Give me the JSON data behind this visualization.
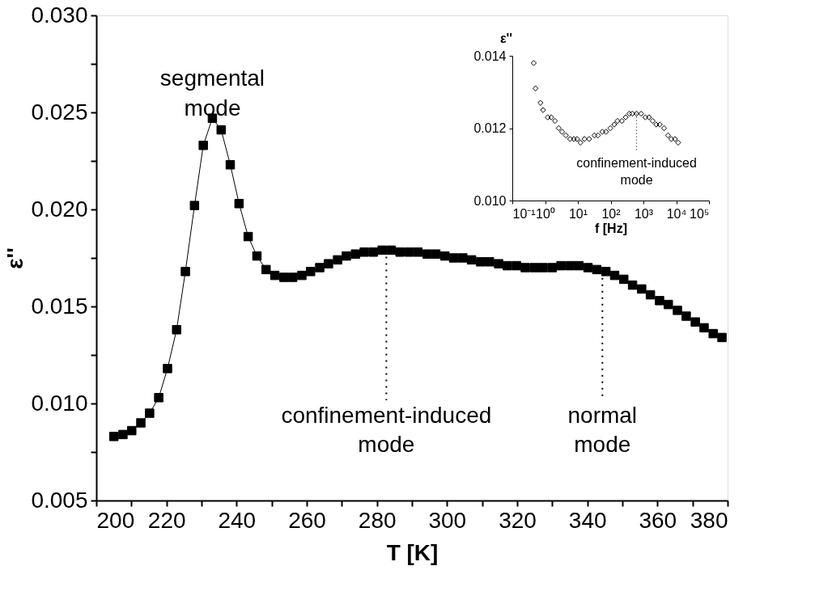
{
  "chart_data": [
    {
      "type": "line",
      "xlabel": "T [K]",
      "ylabel": "ε''",
      "marker": "square",
      "line_style": "solid",
      "x": [
        205.0,
        207.6,
        210.1,
        212.7,
        215.2,
        217.8,
        220.3,
        222.9,
        225.4,
        228.0,
        230.5,
        233.1,
        235.6,
        238.2,
        240.7,
        243.3,
        245.8,
        248.4,
        250.9,
        253.5,
        256.0,
        258.6,
        261.1,
        263.7,
        266.2,
        268.8,
        271.3,
        273.9,
        276.4,
        279.0,
        281.5,
        284.1,
        286.6,
        289.2,
        291.7,
        294.3,
        296.8,
        299.4,
        301.9,
        304.5,
        307.0,
        309.6,
        312.1,
        314.7,
        317.2,
        319.8,
        322.3,
        324.9,
        327.4,
        330.0,
        332.5,
        335.1,
        337.6,
        340.2,
        342.7,
        345.3,
        347.8,
        350.4,
        352.9,
        355.5,
        358.0,
        360.6,
        363.1,
        365.7,
        368.2,
        370.8,
        373.3,
        375.9,
        378.4
      ],
      "series": [
        {
          "color": "#000000",
          "values": [
            0.0083,
            0.0084,
            0.0086,
            0.009,
            0.0095,
            0.0103,
            0.0118,
            0.0138,
            0.0168,
            0.0202,
            0.0233,
            0.0247,
            0.0241,
            0.0223,
            0.0203,
            0.0186,
            0.0176,
            0.0169,
            0.0166,
            0.0165,
            0.0165,
            0.0166,
            0.0168,
            0.017,
            0.0172,
            0.0174,
            0.0176,
            0.0177,
            0.0178,
            0.0178,
            0.0179,
            0.0179,
            0.0178,
            0.0178,
            0.0178,
            0.0177,
            0.0177,
            0.0176,
            0.0175,
            0.0175,
            0.0174,
            0.0173,
            0.0173,
            0.0172,
            0.0171,
            0.0171,
            0.017,
            0.017,
            0.017,
            0.017,
            0.0171,
            0.0171,
            0.0171,
            0.017,
            0.0169,
            0.0168,
            0.0166,
            0.0164,
            0.0161,
            0.0159,
            0.0156,
            0.0153,
            0.0151,
            0.0148,
            0.0145,
            0.0142,
            0.0139,
            0.0136,
            0.0134
          ]
        }
      ],
      "xlim": [
        200,
        380
      ],
      "ylim": [
        0.005,
        0.03
      ],
      "xticks": [
        200,
        {
          "value": 210,
          "label": null
        },
        220,
        {
          "value": 230,
          "label": null
        },
        240,
        {
          "value": 250,
          "label": null
        },
        260,
        {
          "value": 270,
          "label": null
        },
        280,
        {
          "value": 290,
          "label": null
        },
        300,
        {
          "value": 310,
          "label": null
        },
        320,
        {
          "value": 330,
          "label": null
        },
        340,
        {
          "value": 350,
          "label": null
        },
        360,
        {
          "value": 370,
          "label": null
        },
        380
      ],
      "yticks": [
        {
          "value": 0.005,
          "label": "0.005"
        },
        {
          "value": 0.0075,
          "label": null
        },
        {
          "value": 0.01,
          "label": "0.010"
        },
        {
          "value": 0.0125,
          "label": null
        },
        {
          "value": 0.015,
          "label": "0.015"
        },
        {
          "value": 0.0175,
          "label": null
        },
        {
          "value": 0.02,
          "label": "0.020"
        },
        {
          "value": 0.0225,
          "label": null
        },
        {
          "value": 0.025,
          "label": "0.025"
        },
        {
          "value": 0.0275,
          "label": null
        },
        {
          "value": 0.03,
          "label": "0.030"
        }
      ],
      "annotations": [
        {
          "text": "segmental mode",
          "x": 233.1,
          "y": 0.0247
        },
        {
          "text": "confinement-induced mode",
          "x": 282.7,
          "y": 0.0179
        },
        {
          "text": "normal mode",
          "x": 344.3,
          "y": 0.0168
        }
      ]
    },
    {
      "type": "scatter",
      "xlabel": "f [Hz]",
      "ylabel": "ε''",
      "marker": "diamond",
      "log": "x",
      "x": [
        0.45,
        0.51,
        0.72,
        0.87,
        1.2,
        1.55,
        2.0,
        2.6,
        3.3,
        4.3,
        5.8,
        7.6,
        9.5,
        12,
        16,
        22,
        32,
        41,
        56,
        72,
        98,
        129,
        162,
        219,
        288,
        372,
        457,
        617,
        851,
        1148,
        1479,
        1905,
        2455,
        3162,
        4266,
        5623,
        7079,
        9120,
        11482
      ],
      "series": [
        {
          "color": "#000000",
          "values": [
            0.0138,
            0.0131,
            0.0127,
            0.0125,
            0.0123,
            0.0123,
            0.0122,
            0.012,
            0.0119,
            0.0118,
            0.0117,
            0.0117,
            0.0117,
            0.0116,
            0.0117,
            0.0117,
            0.0118,
            0.0118,
            0.0119,
            0.0119,
            0.012,
            0.0121,
            0.0122,
            0.0122,
            0.0123,
            0.0124,
            0.0124,
            0.0124,
            0.0124,
            0.0123,
            0.0123,
            0.0122,
            0.0121,
            0.0121,
            0.012,
            0.0118,
            0.0117,
            0.0117,
            0.0116
          ]
        }
      ],
      "xlim": [
        0.1,
        100000
      ],
      "ylim": [
        0.01,
        0.014
      ],
      "xticks": [
        {
          "value": 0.1,
          "label": "10⁻¹"
        },
        {
          "value": 1,
          "label": "10⁰"
        },
        {
          "value": 10,
          "label": "10¹"
        },
        {
          "value": 100,
          "label": "10²"
        },
        {
          "value": 1000,
          "label": "10³"
        },
        {
          "value": 10000,
          "label": "10⁴"
        },
        {
          "value": 100000,
          "label": "10⁵"
        }
      ],
      "yticks": [
        {
          "value": 0.01,
          "label": "0.010"
        },
        {
          "value": 0.012,
          "label": "0.012"
        },
        {
          "value": 0.014,
          "label": "0.014"
        }
      ],
      "annotations": [
        {
          "text": "confinement-induced mode",
          "x": 620,
          "y": 0.0124
        }
      ]
    }
  ]
}
